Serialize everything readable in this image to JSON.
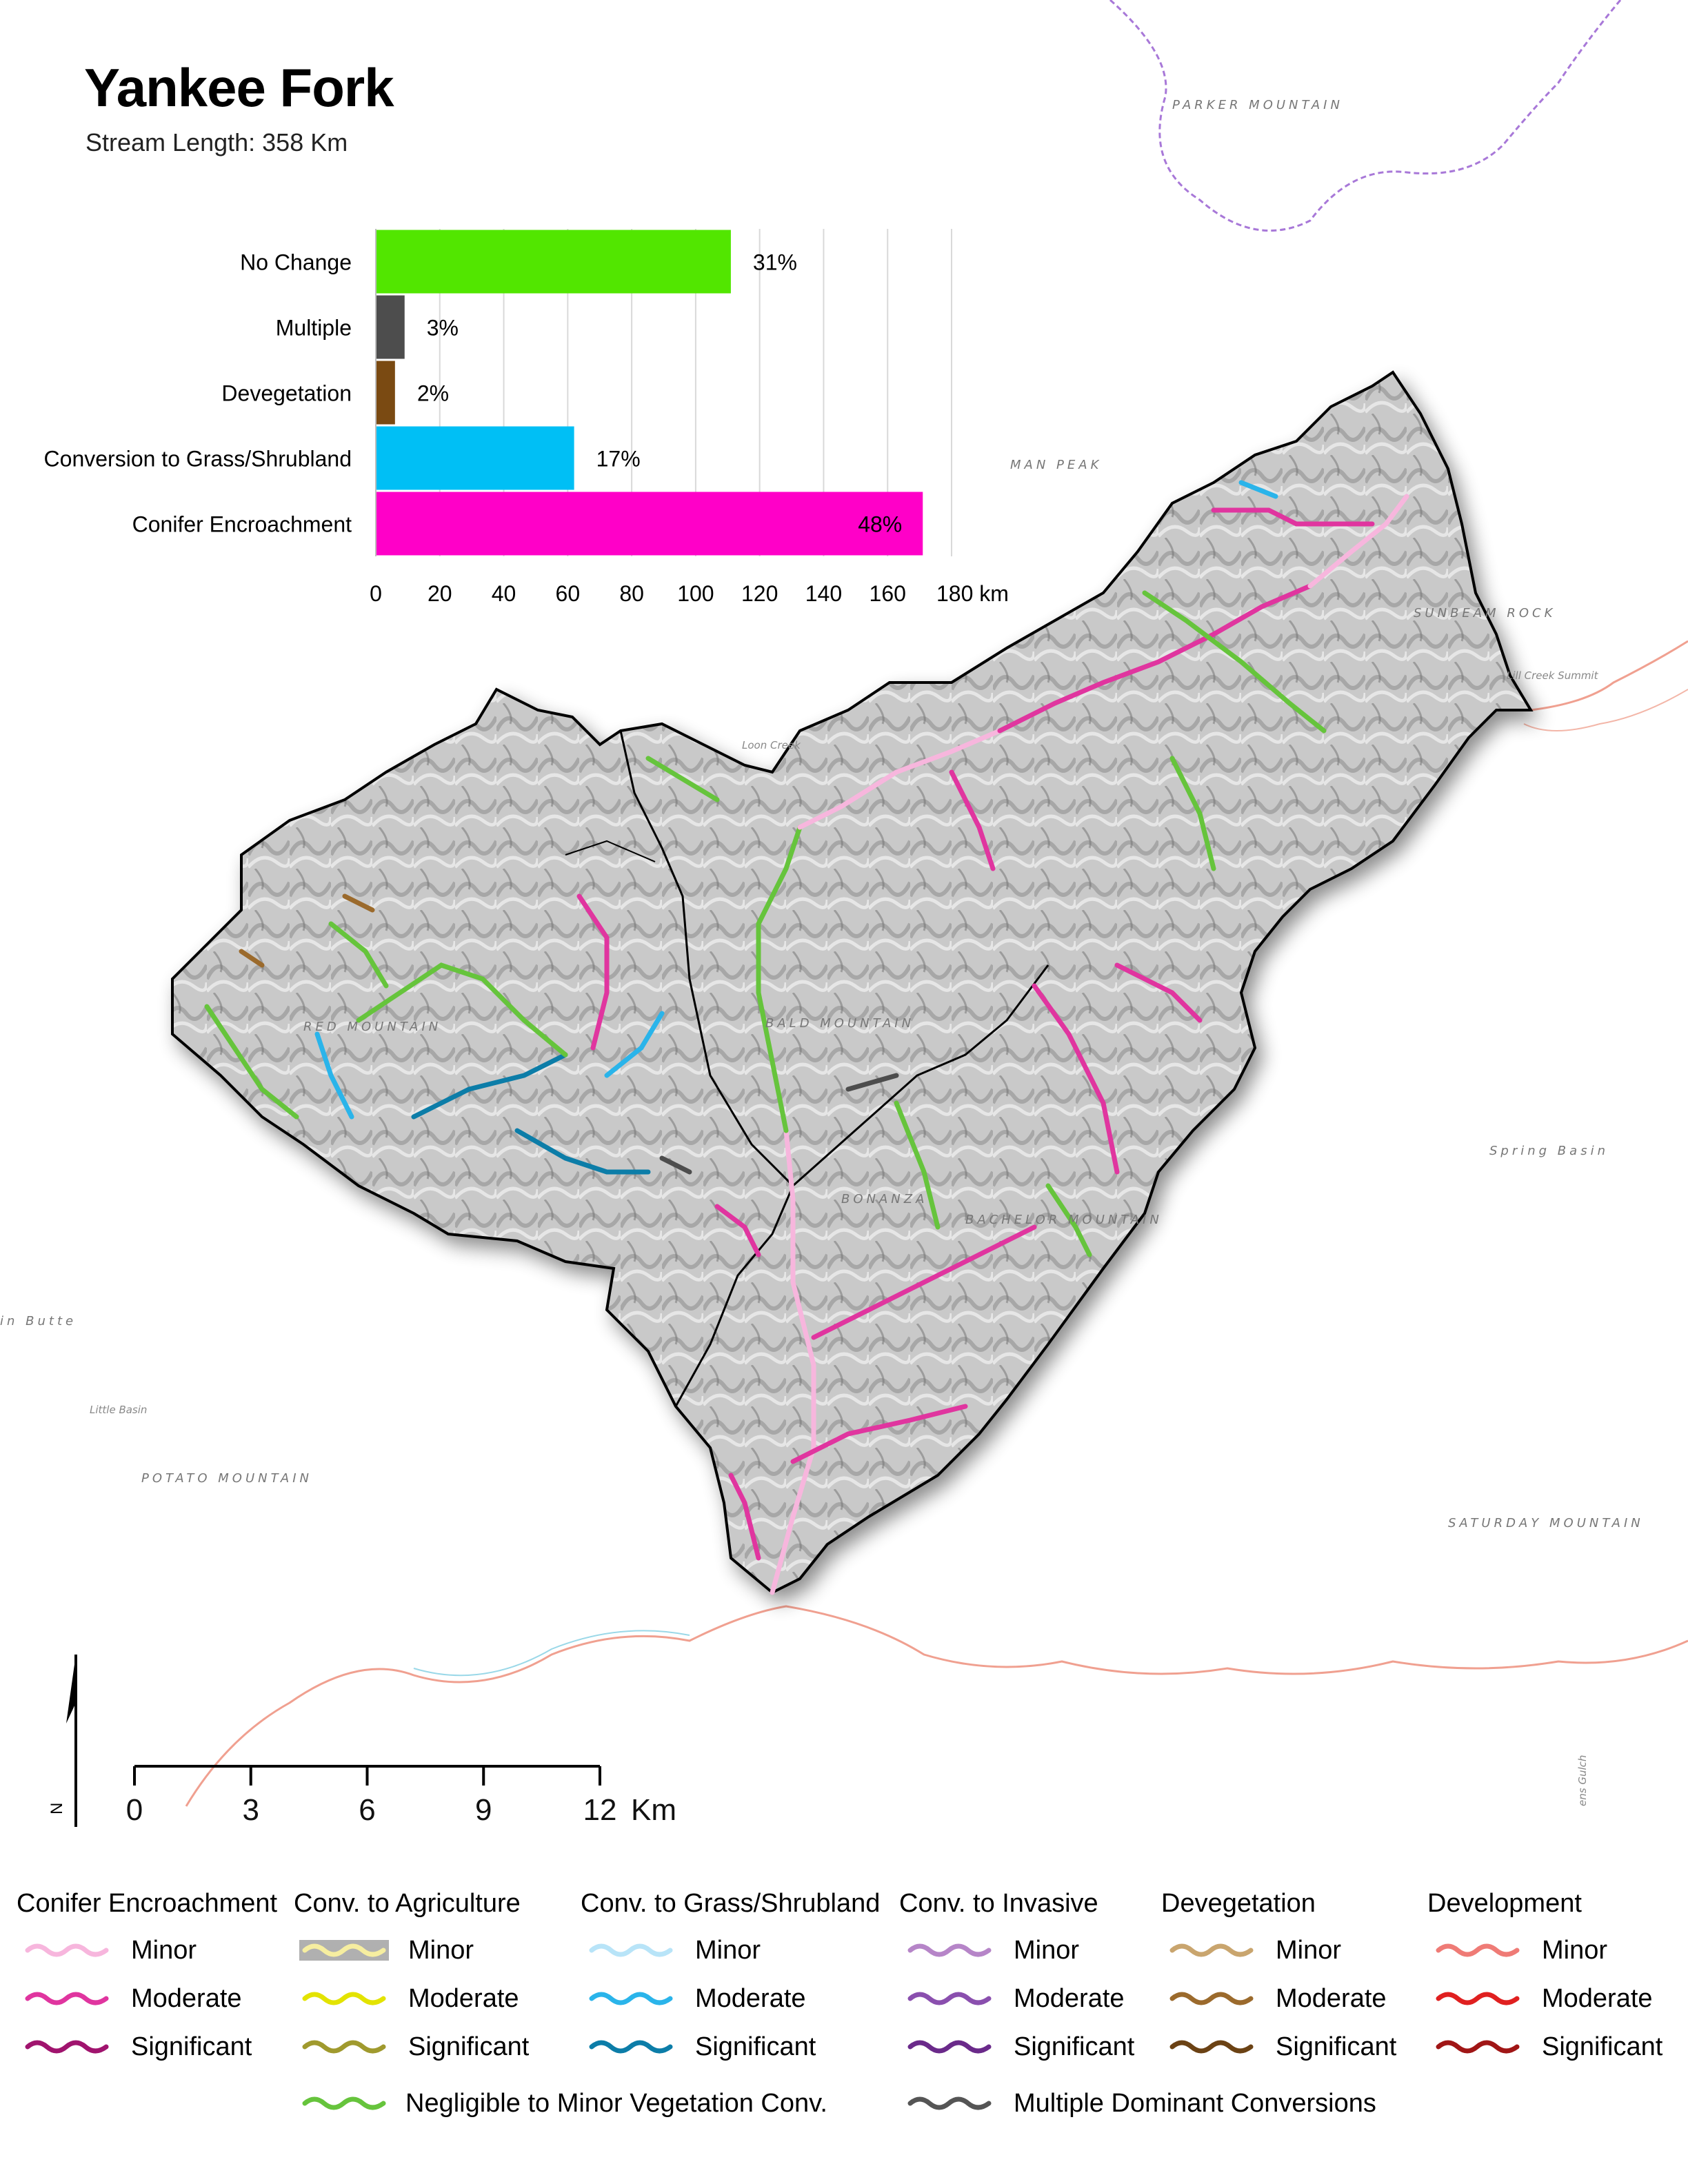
{
  "title": "Yankee Fork",
  "subtitle": "Stream Length: 358 Km",
  "chart_data": {
    "type": "bar",
    "orientation": "horizontal",
    "categories": [
      "No Change",
      "Multiple",
      "Devegetation",
      "Conversion to Grass/Shrubland",
      "Conifer Encroachment"
    ],
    "values": [
      111,
      9,
      6,
      62,
      171
    ],
    "labels": [
      "31%",
      "3%",
      "2%",
      "17%",
      "48%"
    ],
    "colors": [
      "#52e600",
      "#4d4d4d",
      "#7a4a12",
      "#00bff5",
      "#ff00c8"
    ],
    "xticks": [
      "0",
      "20",
      "40",
      "60",
      "80",
      "100",
      "120",
      "140",
      "160",
      "180 km"
    ],
    "xlim": [
      0,
      180
    ],
    "grid": true
  },
  "map": {
    "places": [
      "PARKER MOUNTAIN",
      "MAN PEAK",
      "SUNBEAM ROCK",
      "Lill Creek Summit",
      "RED MOUNTAIN",
      "BALD MOUNTAIN",
      "BONANZA",
      "BACHELOR MOUNTAIN",
      "Spring Basin",
      "SATURDAY MOUNTAIN",
      "POTATO MOUNTAIN",
      "Little Basin",
      "in Butte",
      "Loon Creek",
      "ens Gulch"
    ],
    "scale": {
      "ticks": [
        "0",
        "3",
        "6",
        "9",
        "12"
      ],
      "unit": "Km"
    },
    "north": "N"
  },
  "legend": {
    "groups": [
      {
        "title": "Conifer Encroachment",
        "items": [
          {
            "label": "Minor",
            "color": "#f7b6dd"
          },
          {
            "label": "Moderate",
            "color": "#e0359f"
          },
          {
            "label": "Significant",
            "color": "#a0146e"
          }
        ]
      },
      {
        "title": "Conv. to Agriculture",
        "items": [
          {
            "label": "Minor",
            "color": "#f6eea0"
          },
          {
            "label": "Moderate",
            "color": "#e3e300"
          },
          {
            "label": "Significant",
            "color": "#a09a2e"
          }
        ]
      },
      {
        "title": "Conv. to Grass/Shrubland",
        "items": [
          {
            "label": "Minor",
            "color": "#b8e4f8"
          },
          {
            "label": "Moderate",
            "color": "#2ab4ea"
          },
          {
            "label": "Significant",
            "color": "#0c7da8"
          }
        ]
      },
      {
        "title": "Conv. to Invasive",
        "items": [
          {
            "label": "Minor",
            "color": "#b685c8"
          },
          {
            "label": "Moderate",
            "color": "#8a4fae"
          },
          {
            "label": "Significant",
            "color": "#6a2a8a"
          }
        ]
      },
      {
        "title": "Devegetation",
        "items": [
          {
            "label": "Minor",
            "color": "#c9a56e"
          },
          {
            "label": "Moderate",
            "color": "#9b6a2c"
          },
          {
            "label": "Significant",
            "color": "#6b4214"
          }
        ]
      },
      {
        "title": "Development",
        "items": [
          {
            "label": "Minor",
            "color": "#ef7b76"
          },
          {
            "label": "Moderate",
            "color": "#e02020"
          },
          {
            "label": "Significant",
            "color": "#a01616"
          }
        ]
      }
    ],
    "extra": [
      {
        "label": "Negligible to Minor Vegetation Conv.",
        "color": "#66c43c"
      },
      {
        "label": "Multiple Dominant Conversions",
        "color": "#555555"
      }
    ]
  }
}
